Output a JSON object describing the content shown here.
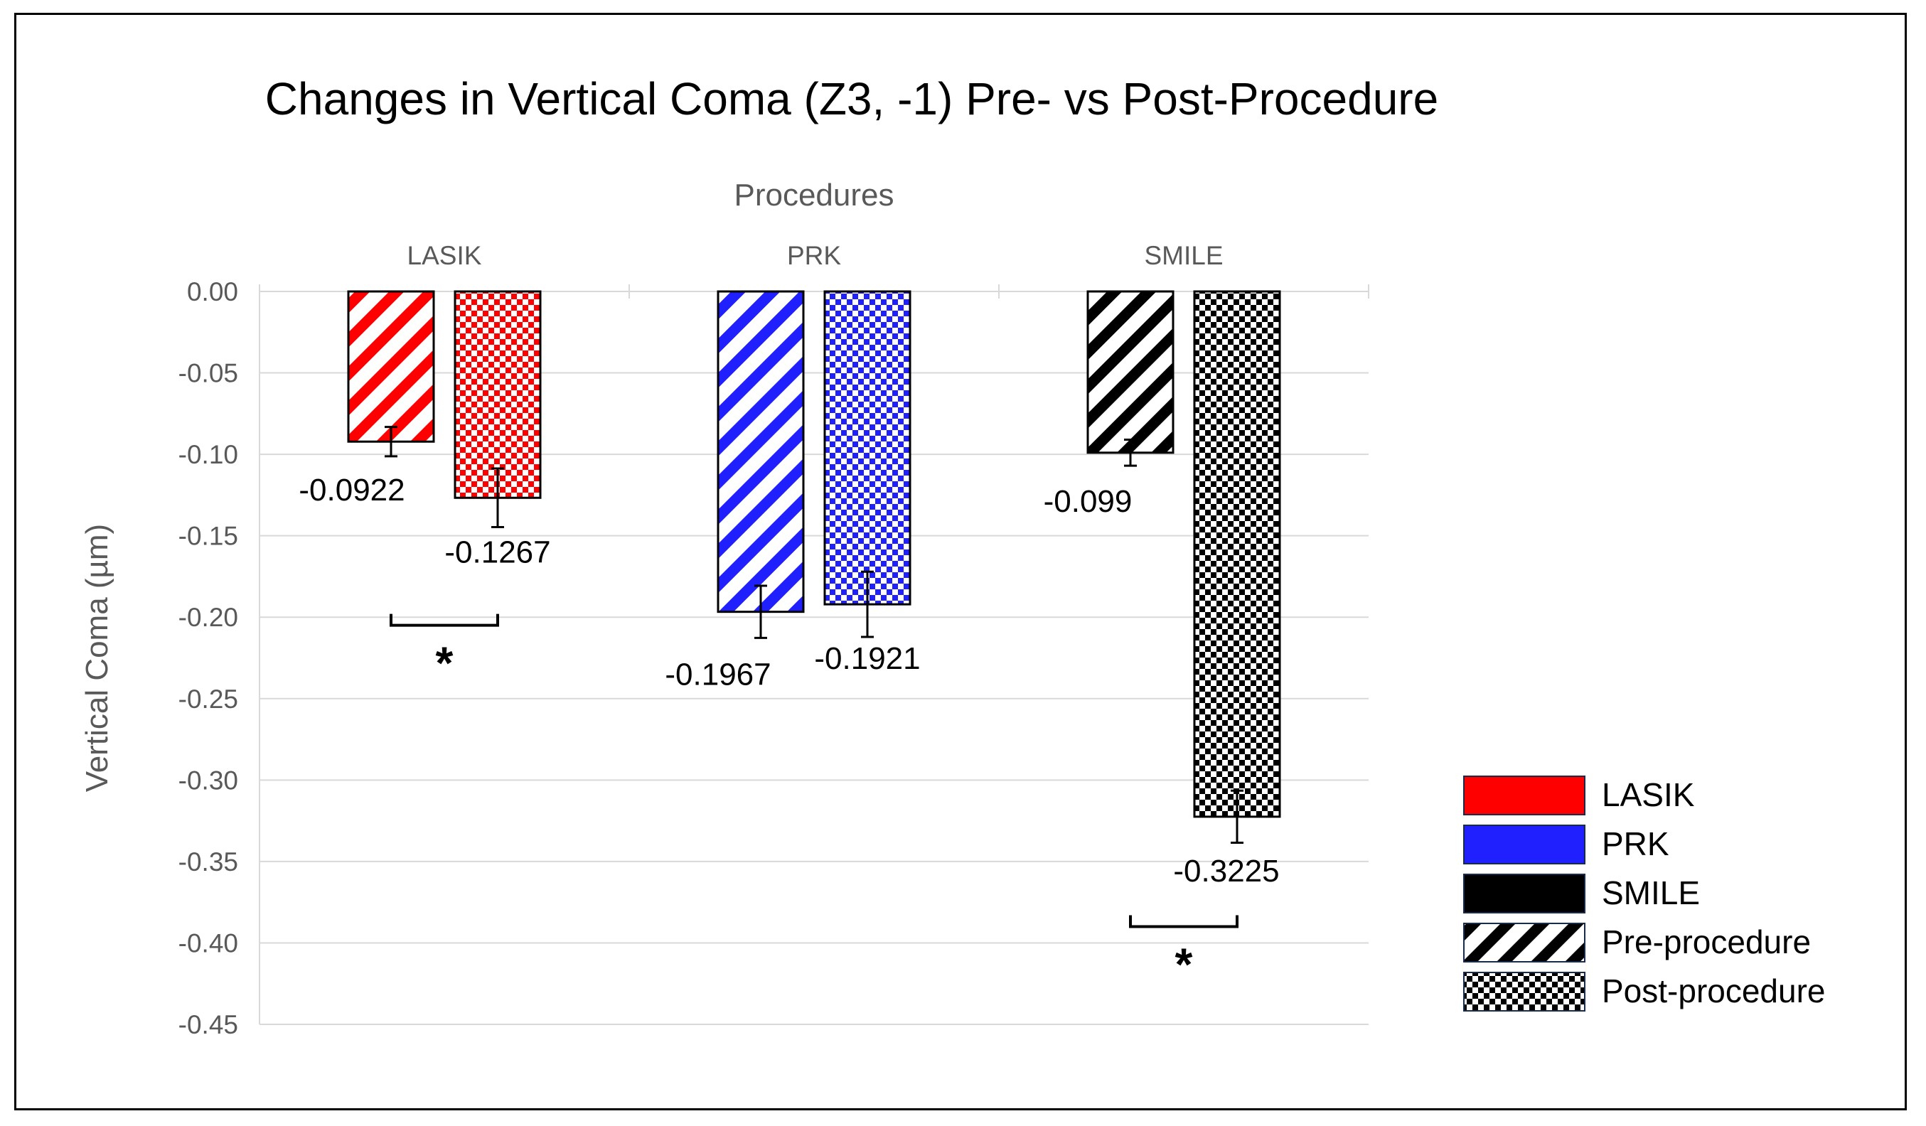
{
  "chart_data": {
    "type": "bar",
    "title": "Changes in Vertical Coma (Z3, -1) Pre- vs Post-Procedure",
    "xlabel": "Procedures",
    "ylabel": "Vertical Coma (µm)",
    "ylim": [
      -0.45,
      0.0
    ],
    "ytick_step": 0.05,
    "grid": true,
    "legend_position": "right",
    "categories": [
      "LASIK",
      "PRK",
      "SMILE"
    ],
    "series": [
      {
        "name": "Pre-procedure",
        "pattern": "diagonal-stripes",
        "values": [
          -0.0922,
          -0.1967,
          -0.099
        ],
        "errors": [
          0.009,
          0.016,
          0.008
        ],
        "labels": [
          "-0.0922",
          "-0.1967",
          "-0.099"
        ]
      },
      {
        "name": "Post-procedure",
        "pattern": "checkerboard",
        "values": [
          -0.1267,
          -0.1921,
          -0.3225
        ],
        "errors": [
          0.018,
          0.02,
          0.016
        ],
        "labels": [
          "-0.1267",
          "-0.1921",
          "-0.3225"
        ]
      }
    ],
    "category_colors": {
      "LASIK": "#ff0000",
      "PRK": "#2020ff",
      "SMILE": "#000000"
    },
    "significance": [
      {
        "category": "LASIK",
        "marker": "*",
        "bracket_y": -0.205
      },
      {
        "category": "SMILE",
        "marker": "*",
        "bracket_y": -0.39
      }
    ],
    "legend": [
      {
        "label": "LASIK",
        "color": "#ff0000",
        "pattern": "solid"
      },
      {
        "label": "PRK",
        "color": "#2020ff",
        "pattern": "solid"
      },
      {
        "label": "SMILE",
        "color": "#000000",
        "pattern": "solid"
      },
      {
        "label": "Pre-procedure",
        "color": "#000000",
        "pattern": "diagonal-stripes"
      },
      {
        "label": "Post-procedure",
        "color": "#000000",
        "pattern": "checkerboard"
      }
    ]
  }
}
